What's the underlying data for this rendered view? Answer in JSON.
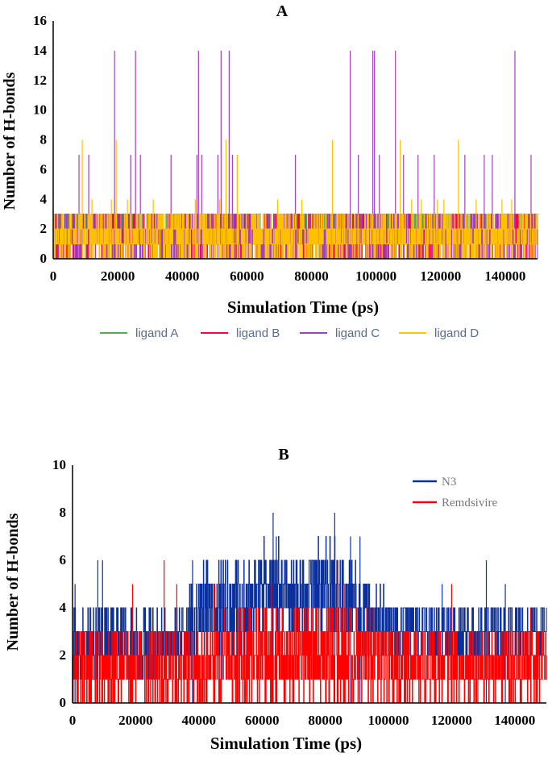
{
  "chart_data": [
    {
      "panel": "A",
      "type": "line",
      "title": "A",
      "xlabel": "Simulation Time (ps)",
      "ylabel": "Number of H-bonds",
      "xlim": [
        0,
        150000
      ],
      "ylim": [
        0,
        16
      ],
      "xticks": [
        "0",
        "20000",
        "40000",
        "60000",
        "80000",
        "100000",
        "120000",
        "140000"
      ],
      "yticks": [
        "0",
        "2",
        "4",
        "6",
        "8",
        "10",
        "12",
        "14",
        "16"
      ],
      "legend_position": "bottom",
      "series": [
        {
          "name": "ligand A",
          "color": "#4caf50",
          "typical_range": [
            1,
            3
          ],
          "spikes": [
            {
              "x": 112000,
              "y": 3
            },
            {
              "x": 135000,
              "y": 3
            }
          ]
        },
        {
          "name": "ligand B",
          "color": "#ff0040",
          "typical_range": [
            0,
            3
          ],
          "spikes": [
            {
              "x": 30000,
              "y": 3
            },
            {
              "x": 90000,
              "y": 3
            }
          ]
        },
        {
          "name": "ligand C",
          "color": "#a040c0",
          "typical_range": [
            0,
            3
          ],
          "spikes": [
            {
              "x": 8000,
              "y": 7
            },
            {
              "x": 11000,
              "y": 7
            },
            {
              "x": 19000,
              "y": 14
            },
            {
              "x": 24000,
              "y": 7
            },
            {
              "x": 25500,
              "y": 14
            },
            {
              "x": 27000,
              "y": 7
            },
            {
              "x": 36500,
              "y": 7
            },
            {
              "x": 44500,
              "y": 7
            },
            {
              "x": 45000,
              "y": 14
            },
            {
              "x": 46000,
              "y": 7
            },
            {
              "x": 51000,
              "y": 7
            },
            {
              "x": 52000,
              "y": 14
            },
            {
              "x": 54500,
              "y": 14
            },
            {
              "x": 55500,
              "y": 7
            },
            {
              "x": 75000,
              "y": 7
            },
            {
              "x": 92000,
              "y": 14
            },
            {
              "x": 94500,
              "y": 7
            },
            {
              "x": 99000,
              "y": 14
            },
            {
              "x": 99500,
              "y": 14
            },
            {
              "x": 101000,
              "y": 7
            },
            {
              "x": 106000,
              "y": 14
            },
            {
              "x": 108500,
              "y": 7
            },
            {
              "x": 113000,
              "y": 7
            },
            {
              "x": 118000,
              "y": 7
            },
            {
              "x": 127500,
              "y": 7
            },
            {
              "x": 133500,
              "y": 7
            },
            {
              "x": 136000,
              "y": 7
            },
            {
              "x": 143000,
              "y": 14
            },
            {
              "x": 148000,
              "y": 7
            }
          ]
        },
        {
          "name": "ligand D",
          "color": "#ffc000",
          "typical_range": [
            0,
            3
          ],
          "spikes": [
            {
              "x": 9000,
              "y": 8
            },
            {
              "x": 12000,
              "y": 4
            },
            {
              "x": 18000,
              "y": 4
            },
            {
              "x": 19500,
              "y": 8
            },
            {
              "x": 23000,
              "y": 4
            },
            {
              "x": 31000,
              "y": 4
            },
            {
              "x": 44000,
              "y": 4
            },
            {
              "x": 51500,
              "y": 4
            },
            {
              "x": 53500,
              "y": 8
            },
            {
              "x": 57000,
              "y": 7
            },
            {
              "x": 69500,
              "y": 4
            },
            {
              "x": 77000,
              "y": 4
            },
            {
              "x": 86500,
              "y": 8
            },
            {
              "x": 107500,
              "y": 8
            },
            {
              "x": 111000,
              "y": 4
            },
            {
              "x": 114000,
              "y": 4
            },
            {
              "x": 119000,
              "y": 4
            },
            {
              "x": 121000,
              "y": 4
            },
            {
              "x": 125500,
              "y": 8
            },
            {
              "x": 131000,
              "y": 4
            },
            {
              "x": 139000,
              "y": 4
            },
            {
              "x": 142000,
              "y": 4
            }
          ]
        }
      ]
    },
    {
      "panel": "B",
      "type": "line",
      "title": "B",
      "xlabel": "Simulation Time (ps)",
      "ylabel": "Number of H-bonds",
      "xlim": [
        0,
        150000
      ],
      "ylim": [
        0,
        10
      ],
      "xticks": [
        "0",
        "20000",
        "40000",
        "60000",
        "80000",
        "100000",
        "120000",
        "140000"
      ],
      "yticks": [
        "0",
        "2",
        "4",
        "6",
        "8",
        "10"
      ],
      "legend_position": "top-right",
      "series": [
        {
          "name": "N3",
          "color": "#0a2f9e",
          "profile": [
            {
              "x": 0,
              "low": 1,
              "high": 4
            },
            {
              "x": 35000,
              "low": 1,
              "high": 4
            },
            {
              "x": 40000,
              "low": 2,
              "high": 6
            },
            {
              "x": 55000,
              "low": 2,
              "high": 6
            },
            {
              "x": 62000,
              "low": 3,
              "high": 7
            },
            {
              "x": 72000,
              "low": 3,
              "high": 6
            },
            {
              "x": 82000,
              "low": 3,
              "high": 7
            },
            {
              "x": 95000,
              "low": 2,
              "high": 5
            },
            {
              "x": 110000,
              "low": 2,
              "high": 4
            },
            {
              "x": 150000,
              "low": 2,
              "high": 4
            }
          ],
          "spikes": [
            {
              "x": 800,
              "y": 5
            },
            {
              "x": 8000,
              "y": 6
            },
            {
              "x": 9500,
              "y": 6
            },
            {
              "x": 38000,
              "y": 6
            },
            {
              "x": 47000,
              "y": 6
            },
            {
              "x": 52000,
              "y": 6
            },
            {
              "x": 63500,
              "y": 8
            },
            {
              "x": 64500,
              "y": 7
            },
            {
              "x": 83000,
              "y": 8
            },
            {
              "x": 88000,
              "y": 7
            },
            {
              "x": 91000,
              "y": 7
            },
            {
              "x": 117000,
              "y": 5
            },
            {
              "x": 131000,
              "y": 6
            },
            {
              "x": 137000,
              "y": 5
            }
          ]
        },
        {
          "name": "Remdsivire",
          "color": "#ff0000",
          "profile": [
            {
              "x": 0,
              "low": 0,
              "high": 3
            },
            {
              "x": 40000,
              "low": 0,
              "high": 3
            },
            {
              "x": 55000,
              "low": 0,
              "high": 4
            },
            {
              "x": 90000,
              "low": 0,
              "high": 4
            },
            {
              "x": 110000,
              "low": 0,
              "high": 3
            },
            {
              "x": 150000,
              "low": 0,
              "high": 3
            }
          ],
          "spikes": [
            {
              "x": 19000,
              "y": 5
            },
            {
              "x": 29000,
              "y": 6
            },
            {
              "x": 33000,
              "y": 5
            },
            {
              "x": 45000,
              "y": 5
            },
            {
              "x": 63000,
              "y": 5
            },
            {
              "x": 84000,
              "y": 6
            },
            {
              "x": 86000,
              "y": 5
            },
            {
              "x": 120000,
              "y": 5
            },
            {
              "x": 145000,
              "y": 4
            }
          ]
        }
      ]
    }
  ]
}
